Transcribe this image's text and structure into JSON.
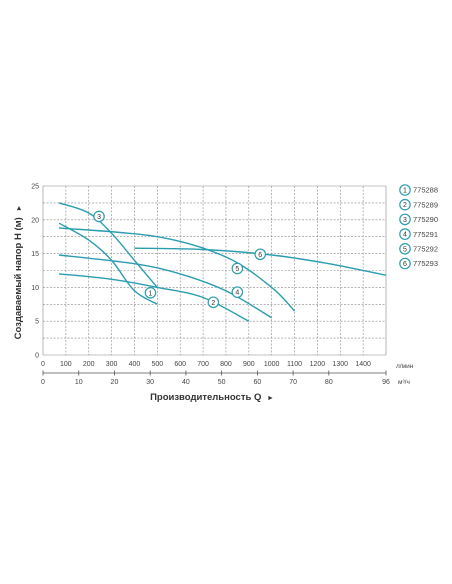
{
  "chart_data": {
    "type": "line",
    "title": "",
    "ylabel": "Создаваемый напор H (м)",
    "xlabel": "Производительность Q",
    "y_arrow": "►",
    "x_arrow": "►",
    "ylim": [
      0,
      25
    ],
    "xlim_lmin": [
      0,
      1500
    ],
    "y_ticks": [
      "0",
      "5",
      "10",
      "15",
      "20",
      "25"
    ],
    "x_ticks_lmin": [
      "0",
      "100",
      "200",
      "300",
      "400",
      "500",
      "600",
      "700",
      "800",
      "900",
      "1000",
      "1100",
      "1200",
      "1300",
      "1400"
    ],
    "x_unit_lmin": "л/мин",
    "x_ticks_m3h": [
      "0",
      "10",
      "20",
      "30",
      "40",
      "50",
      "60",
      "70",
      "80",
      "96"
    ],
    "x_unit_m3h": "м³/ч",
    "grid": true,
    "line_color": "#2a9db0",
    "legend_position": "right",
    "series": [
      {
        "name": "775288",
        "marker": "1",
        "marker_at": [
          470,
          9.2
        ],
        "x": [
          70,
          200,
          300,
          400,
          500
        ],
        "y": [
          19.5,
          17,
          14,
          9.5,
          7.5
        ]
      },
      {
        "name": "775289",
        "marker": "2",
        "marker_at": [
          745,
          7.8
        ],
        "x": [
          70,
          300,
          500,
          700,
          900
        ],
        "y": [
          12,
          11.2,
          10,
          8.5,
          5
        ]
      },
      {
        "name": "775290",
        "marker": "3",
        "marker_at": [
          245,
          20.5
        ],
        "x": [
          70,
          200,
          300,
          400,
          500
        ],
        "y": [
          22.5,
          21,
          18,
          14,
          10
        ]
      },
      {
        "name": "775291",
        "marker": "4",
        "marker_at": [
          850,
          9.3
        ],
        "x": [
          70,
          400,
          600,
          800,
          1000
        ],
        "y": [
          14.8,
          13.5,
          12,
          9.5,
          5.5
        ]
      },
      {
        "name": "775292",
        "marker": "5",
        "marker_at": [
          850,
          12.8
        ],
        "x": [
          70,
          500,
          800,
          1000,
          1100
        ],
        "y": [
          18.8,
          17.5,
          14.5,
          10,
          6.5
        ]
      },
      {
        "name": "775293",
        "marker": "6",
        "marker_at": [
          950,
          14.9
        ],
        "x": [
          400,
          700,
          1000,
          1250,
          1500
        ],
        "y": [
          15.8,
          15.6,
          14.8,
          13.5,
          11.8
        ]
      }
    ]
  }
}
